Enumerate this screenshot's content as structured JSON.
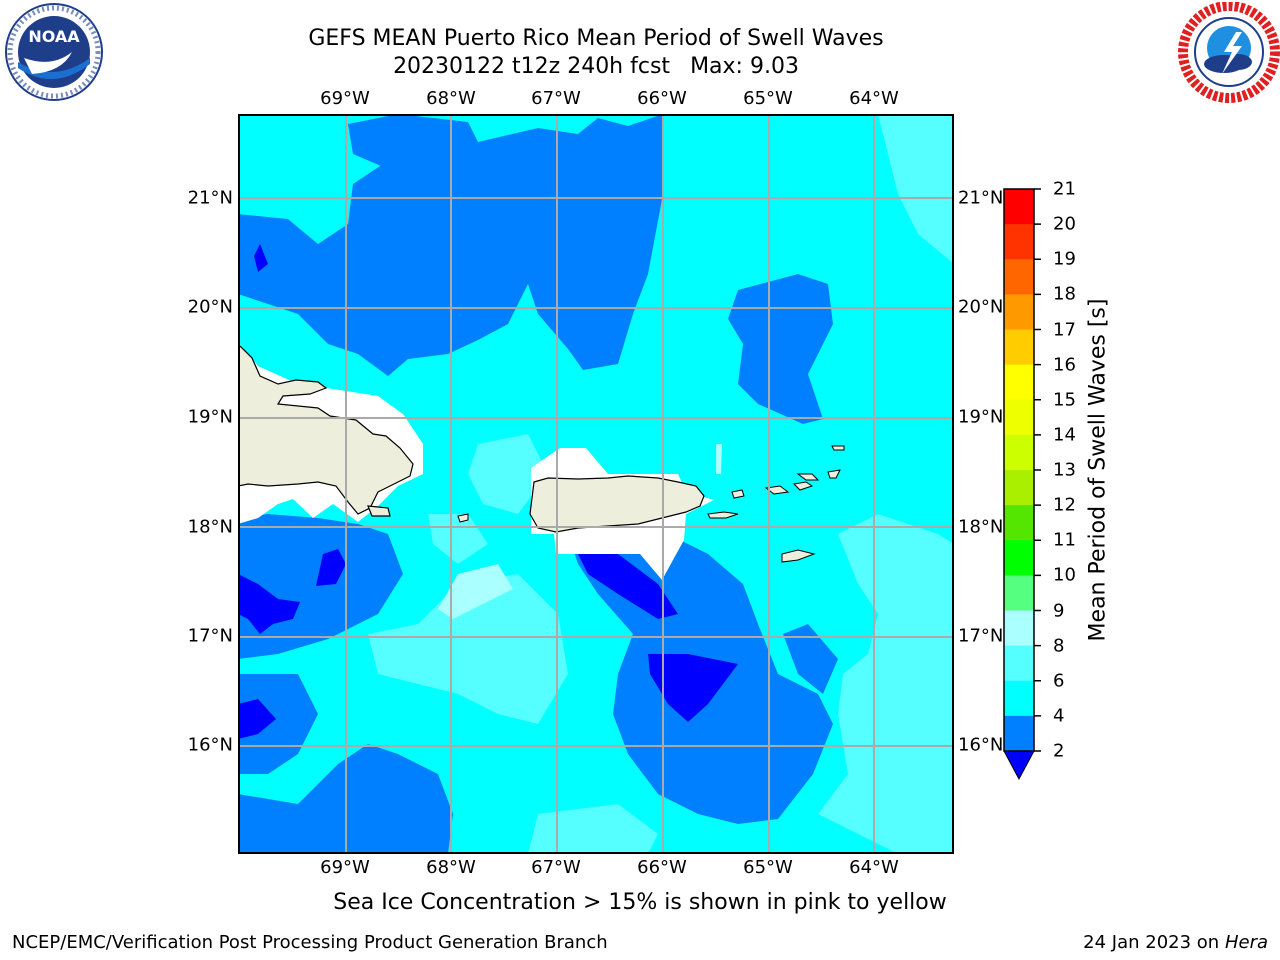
{
  "header": {
    "title_line1": "GEFS MEAN Puerto Rico Mean Period of Swell Waves",
    "title_line2": "20230122 t12z 240h fcst",
    "max_label": "Max: 9.03"
  },
  "logos": {
    "left": "noaa-logo",
    "right": "nws-logo"
  },
  "map": {
    "lon_labels": [
      "69°W",
      "68°W",
      "67°W",
      "66°W",
      "65°W",
      "64°W"
    ],
    "lat_labels": [
      "21°N",
      "20°N",
      "19°N",
      "18°N",
      "17°N",
      "16°N"
    ],
    "lon_range": [
      -70,
      -63.25
    ],
    "lat_range": [
      15,
      21.75
    ],
    "grid": true
  },
  "colorbar": {
    "title": "Mean Period of Swell Waves [s]",
    "ticks": [
      "2",
      "4",
      "6",
      "8",
      "9",
      "10",
      "11",
      "12",
      "13",
      "14",
      "15",
      "16",
      "17",
      "18",
      "19",
      "20",
      "21"
    ],
    "colors": [
      "#0000ff",
      "#0080ff",
      "#00ffff",
      "#55ffff",
      "#aaffff",
      "#55ff80",
      "#00ff00",
      "#55e600",
      "#aaee00",
      "#ccff00",
      "#eeff00",
      "#ffff00",
      "#ffcc00",
      "#ff9900",
      "#ff6600",
      "#ff3300",
      "#ff0000"
    ]
  },
  "footer": {
    "note": "Sea Ice Concentration > 15% is shown in pink to yellow",
    "credit": "NCEP/EMC/Verification Post Processing Product Generation Branch",
    "date": "24 Jan 2023 on",
    "host": "Hera"
  },
  "chart_data": {
    "type": "heatmap",
    "title": "GEFS MEAN Puerto Rico Mean Period of Swell Waves",
    "subtitle": "20230122 t12z 240h fcst   Max: 9.03",
    "xlabel": "",
    "ylabel": "",
    "zlabel": "Mean Period of Swell Waves [s]",
    "levels": [
      2,
      4,
      6,
      8,
      9,
      10,
      11,
      12,
      13,
      14,
      15,
      16,
      17,
      18,
      19,
      20,
      21
    ],
    "max": 9.03,
    "xlim": [
      -70,
      -63.25
    ],
    "ylim": [
      15,
      21.75
    ]
  }
}
